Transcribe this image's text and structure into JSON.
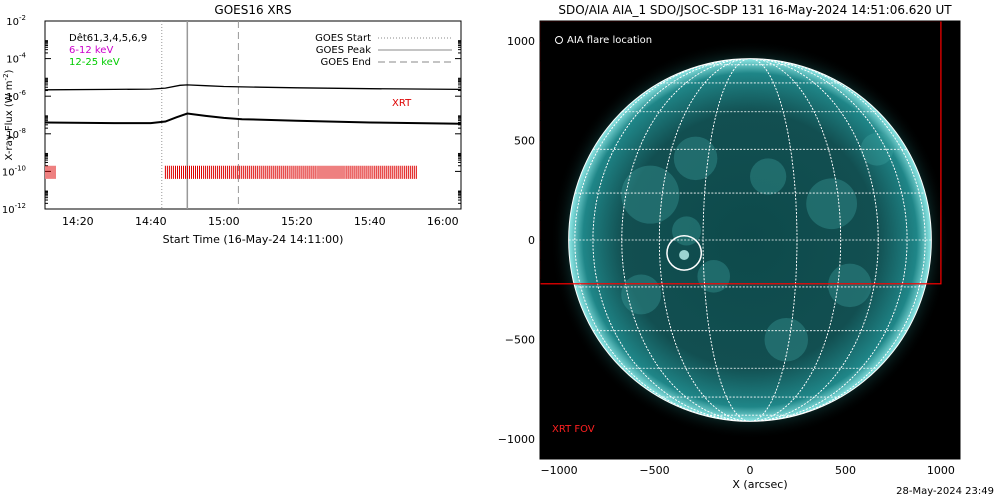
{
  "chart_data": [
    {
      "type": "line",
      "title": "GOES16 XRS",
      "xlabel": "Start Time (16-May-24 14:11:00)",
      "ylabel": "X-ray Flux (W m",
      "ylabel_sup": "-2",
      "ylabel_close": ")",
      "y_scale": "log",
      "xlim": [
        "14:11",
        "16:05"
      ],
      "ylim": [
        1e-12,
        0.01
      ],
      "x_ticks": [
        "14:20",
        "14:40",
        "15:00",
        "15:20",
        "15:40",
        "16:00"
      ],
      "y_ticks": [
        {
          "base": "10",
          "exp": "-2"
        },
        {
          "base": "10",
          "exp": "-4"
        },
        {
          "base": "10",
          "exp": "-6"
        },
        {
          "base": "10",
          "exp": "-8"
        },
        {
          "base": "10",
          "exp": "-10"
        },
        {
          "base": "10",
          "exp": "-12"
        }
      ],
      "legend_left": [
        {
          "label": "Dêt61,3,4,5,6,9",
          "color": "#000000"
        },
        {
          "label": "6-12 keV",
          "color": "#cc00cc"
        },
        {
          "label": "12-25 keV",
          "color": "#00cc00"
        }
      ],
      "legend_right": [
        {
          "label": "GOES Start",
          "style": "dotted"
        },
        {
          "label": "GOES Peak",
          "style": "solid"
        },
        {
          "label": "GOES End",
          "style": "dashed"
        }
      ],
      "markers": {
        "start": "14:43",
        "peak": "14:50",
        "end": "15:04"
      },
      "xrt_label": "XRT",
      "xrt_segments": [
        [
          "14:11",
          "14:14"
        ],
        [
          "14:44",
          "15:53"
        ]
      ],
      "series": [
        {
          "name": "long",
          "x": [
            "14:11",
            "14:30",
            "14:40",
            "14:44",
            "14:48",
            "14:50",
            "14:55",
            "15:00",
            "15:10",
            "15:20",
            "15:40",
            "16:05"
          ],
          "y": [
            2.2e-06,
            2.3e-06,
            2.4e-06,
            2.7e-06,
            3.8e-06,
            4e-06,
            3.6e-06,
            3.3e-06,
            3e-06,
            2.8e-06,
            2.5e-06,
            2.3e-06
          ]
        },
        {
          "name": "short",
          "x": [
            "14:11",
            "14:30",
            "14:40",
            "14:44",
            "14:47",
            "14:50",
            "14:55",
            "15:00",
            "15:05",
            "15:20",
            "15:40",
            "16:05"
          ],
          "y": [
            4e-08,
            3.7e-08,
            3.7e-08,
            4.5e-08,
            7.5e-08,
            1.2e-07,
            9e-08,
            7e-08,
            6e-08,
            5e-08,
            4e-08,
            3.4e-08
          ]
        }
      ]
    },
    {
      "type": "image",
      "title": "SDO/AIA AIA_1 SDO/JSOC-SDP 131 16-May-2024 14:51:06.620 UT",
      "xlabel": "X (arcsec)",
      "xlim": [
        -1100,
        1100
      ],
      "ylim": [
        -1100,
        1100
      ],
      "x_ticks": [
        -1000,
        -500,
        0,
        500,
        1000
      ],
      "y_ticks": [
        1000,
        500,
        0,
        -500,
        -1000
      ],
      "solar_radius_arcsec": 950,
      "flare_location": [
        -345,
        -65
      ],
      "flare_radius_arcsec": 90,
      "flare_legend": "AIA flare location",
      "xrt_fov_label": "XRT FOV",
      "xrt_fov_box": {
        "x0": -1100,
        "x1": 1000,
        "y0": -220,
        "y1": 1100
      },
      "grid_color": "#ffffff",
      "fov_color": "#ff0000",
      "disk_color": "#1a7f80"
    }
  ],
  "footer_timestamp": "28-May-2024 23:49"
}
